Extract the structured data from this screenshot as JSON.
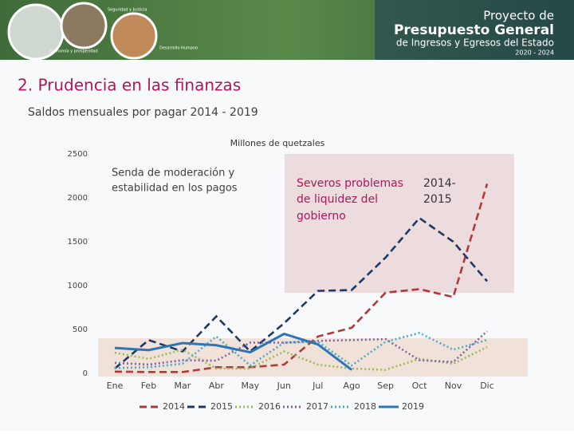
{
  "header": {
    "line1": "Proyecto de",
    "line2": "Presupuesto General",
    "line3": "de Ingresos y Egresos del Estado",
    "line4": "2020 - 2024",
    "icon1": "Seguridad y Justicia",
    "icon2": "Economía y prosperidad",
    "icon3": "Desarrollo Humano"
  },
  "chart_data": {
    "type": "line",
    "title": "2. Prudencia en las finanzas",
    "subtitle": "Saldos mensuales por pagar 2014 - 2019",
    "ylabel": "Millones de quetzales",
    "annotations": [
      "Senda de moderación y",
      "estabilidad en los pagos",
      "Severos problemas",
      "de liquidez del",
      "gobierno",
      "2014-",
      "2015"
    ],
    "categories": [
      "Ene",
      "Feb",
      "Mar",
      "Abr",
      "May",
      "Jun",
      "Jul",
      "Ago",
      "Sep",
      "Oct",
      "Nov",
      "Dic"
    ],
    "ylim": [
      0,
      2500
    ],
    "yticks": [
      0,
      500,
      1000,
      1500,
      2000,
      2500
    ],
    "grid": false,
    "legend": "bottom",
    "series": [
      {
        "name": "2014",
        "color": "#b03a3a",
        "style": "dashed",
        "values": [
          20,
          15,
          15,
          70,
          70,
          100,
          420,
          520,
          920,
          960,
          870,
          2160
        ]
      },
      {
        "name": "2015",
        "color": "#1f3864",
        "style": "dashed",
        "values": [
          55,
          380,
          250,
          650,
          250,
          570,
          940,
          950,
          1320,
          1770,
          1500,
          1050
        ]
      },
      {
        "name": "2016",
        "color": "#9bbb59",
        "style": "dotted",
        "values": [
          235,
          165,
          270,
          55,
          55,
          250,
          100,
          55,
          40,
          165,
          110,
          300
        ]
      },
      {
        "name": "2017",
        "color": "#8064a2",
        "style": "dotted",
        "values": [
          120,
          100,
          150,
          145,
          350,
          350,
          370,
          380,
          390,
          150,
          130,
          480
        ]
      },
      {
        "name": "2018",
        "color": "#4bacc6",
        "style": "dotted",
        "values": [
          60,
          70,
          110,
          420,
          90,
          350,
          360,
          90,
          360,
          460,
          270,
          380
        ]
      },
      {
        "name": "2019",
        "color": "#2e75b6",
        "style": "solid",
        "values": [
          290,
          265,
          345,
          320,
          240,
          450,
          330,
          40,
          null,
          null,
          null,
          null
        ]
      }
    ]
  }
}
